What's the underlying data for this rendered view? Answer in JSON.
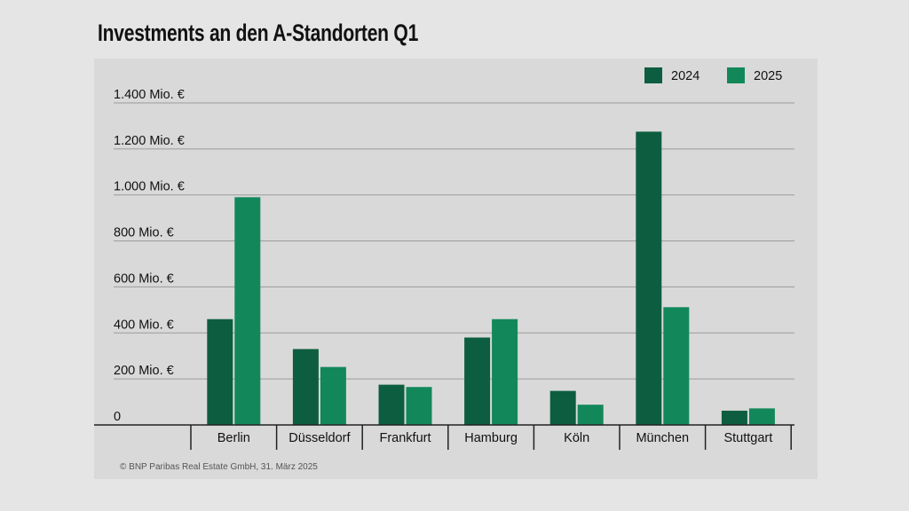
{
  "chart_data": {
    "type": "bar",
    "title": "Investments an den A-Standorten Q1",
    "categories": [
      "Berlin",
      "Düsseldorf",
      "Frankfurt",
      "Hamburg",
      "Köln",
      "München",
      "Stuttgart"
    ],
    "series": [
      {
        "name": "2024",
        "color": "#0d5e40",
        "values": [
          460,
          330,
          175,
          380,
          148,
          1275,
          62
        ]
      },
      {
        "name": "2025",
        "color": "#12885a",
        "values": [
          990,
          252,
          165,
          460,
          88,
          512,
          72
        ]
      }
    ],
    "ylim": [
      0,
      1400
    ],
    "yticks": [
      {
        "value": 0,
        "label": "0"
      },
      {
        "value": 200,
        "label": "200 Mio. €"
      },
      {
        "value": 400,
        "label": "400 Mio. €"
      },
      {
        "value": 600,
        "label": "600 Mio. €"
      },
      {
        "value": 800,
        "label": "800 Mio. €"
      },
      {
        "value": 1000,
        "label": "1.000 Mio. €"
      },
      {
        "value": 1200,
        "label": "1.200 Mio. €"
      },
      {
        "value": 1400,
        "label": "1.400 Mio. €"
      }
    ],
    "legend_position": "top-right",
    "grid": true,
    "xlabel": "",
    "ylabel": ""
  },
  "footer": {
    "credit": "© BNP Paribas Real Estate GmbH, 31. März 2025"
  }
}
